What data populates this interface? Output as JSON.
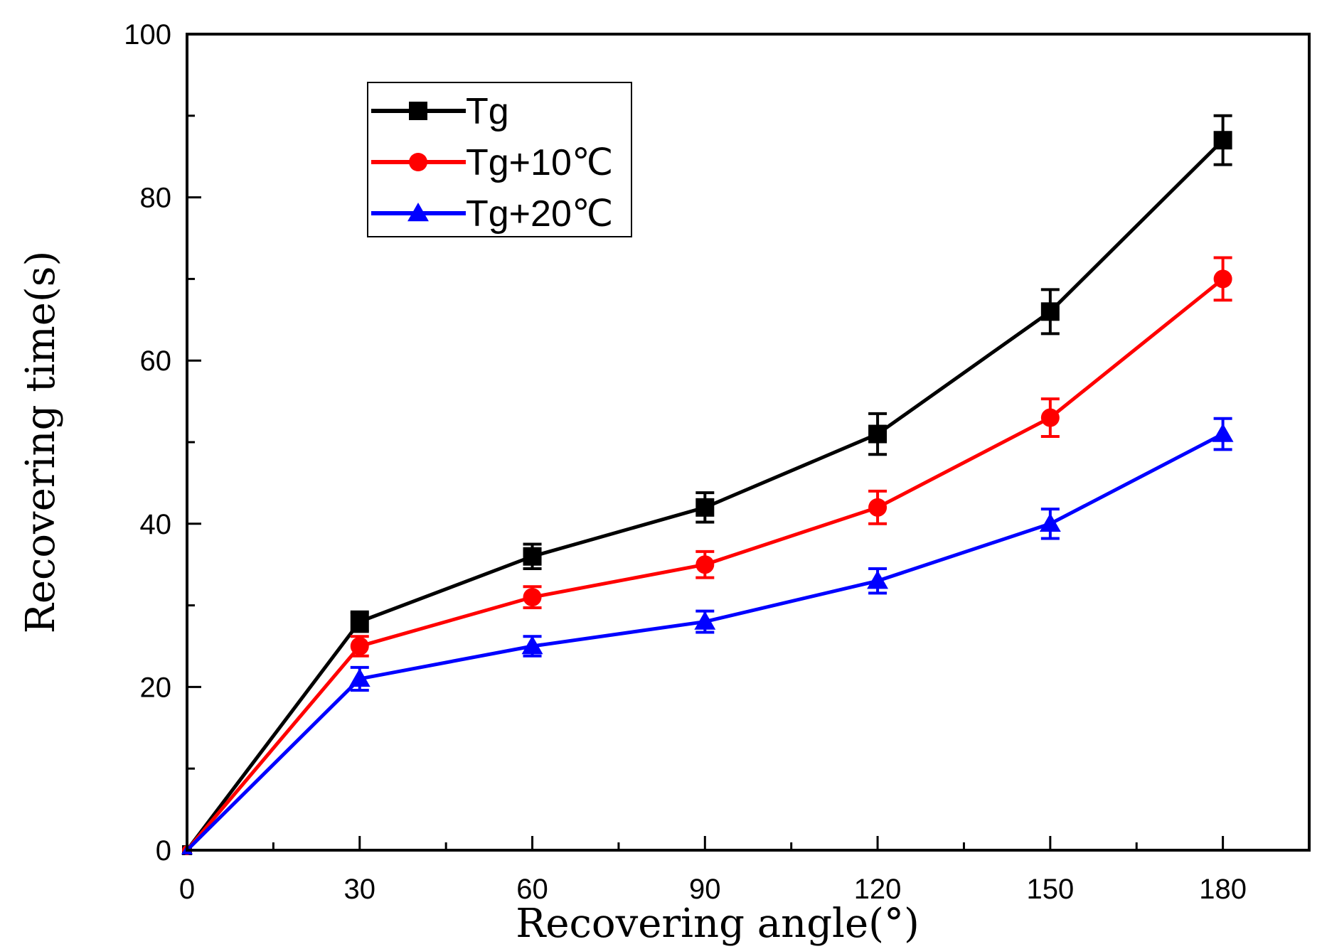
{
  "chart_data": {
    "type": "line",
    "title": "",
    "xlabel": "Recovering angle(°)",
    "ylabel": "Recovering time(s)",
    "xlim": [
      0,
      195
    ],
    "ylim": [
      0,
      100
    ],
    "x": [
      0,
      30,
      60,
      90,
      120,
      150,
      180
    ],
    "x_ticks": [
      0,
      30,
      60,
      90,
      120,
      150,
      180
    ],
    "x_tick_labels": [
      "0",
      "30",
      "60",
      "90",
      "120",
      "150",
      "180"
    ],
    "y_ticks": [
      0,
      20,
      40,
      60,
      80,
      100
    ],
    "y_tick_labels": [
      "0",
      "20",
      "40",
      "60",
      "80",
      "100"
    ],
    "grid": false,
    "legend_position": "top-left",
    "series": [
      {
        "name": "Tg",
        "color": "#000000",
        "marker": "square",
        "values": [
          0,
          28,
          36,
          42,
          51,
          66,
          87
        ],
        "errors": [
          0,
          1.2,
          1.5,
          1.8,
          2.5,
          2.7,
          3.0
        ]
      },
      {
        "name": "Tg+10℃",
        "color": "#ff0000",
        "marker": "circle",
        "values": [
          0,
          25,
          31,
          35,
          42,
          53,
          70
        ],
        "errors": [
          0,
          1.2,
          1.3,
          1.6,
          2.0,
          2.3,
          2.6
        ]
      },
      {
        "name": "Tg+20℃",
        "color": "#0000ff",
        "marker": "triangle",
        "values": [
          0,
          21,
          25,
          28,
          33,
          40,
          51
        ],
        "errors": [
          0,
          1.4,
          1.2,
          1.3,
          1.5,
          1.8,
          1.9
        ]
      }
    ]
  }
}
